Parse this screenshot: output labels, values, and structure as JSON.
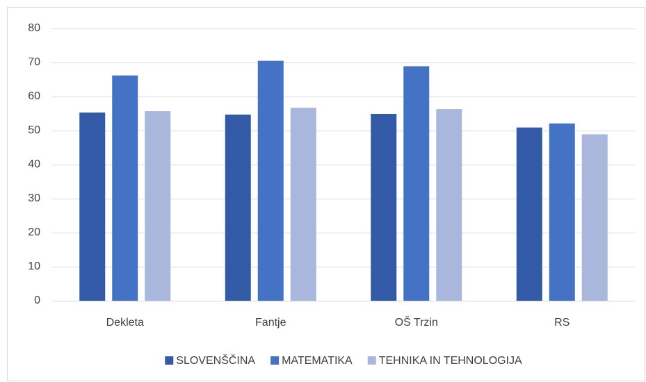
{
  "chart_data": {
    "type": "bar",
    "categories": [
      "Dekleta",
      "Fantje",
      "OŠ Trzin",
      "RS"
    ],
    "series": [
      {
        "name": "SLOVENŠČINA",
        "color": "#335aa6",
        "values": [
          55.3,
          54.7,
          54.9,
          50.9
        ]
      },
      {
        "name": "MATEMATIKA",
        "color": "#4472c4",
        "values": [
          66.2,
          70.5,
          68.9,
          52.1
        ]
      },
      {
        "name": "TEHNIKA IN TEHNOLOGIJA",
        "color": "#a9b7dc",
        "values": [
          55.7,
          56.7,
          56.3,
          48.9
        ]
      }
    ],
    "ylim": [
      0,
      80
    ],
    "yticks": [
      0,
      10,
      20,
      30,
      40,
      50,
      60,
      70,
      80
    ],
    "grid": true,
    "legend": "bottom"
  }
}
